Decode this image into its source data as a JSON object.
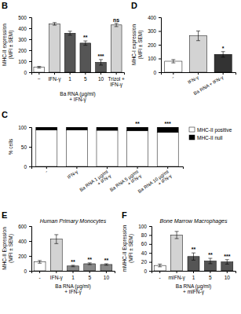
{
  "chart_data": [
    {
      "type": "bar",
      "title": "B",
      "categories": [
        "−",
        "IFN-γ",
        "1",
        "5",
        "10",
        "Trizol +\nIFN-γ"
      ],
      "values": [
        45,
        440,
        355,
        265,
        90,
        430
      ],
      "errors": [
        8,
        12,
        18,
        20,
        25,
        15
      ],
      "colors": [
        "white",
        "lightgray",
        "#555555",
        "#555555",
        "#555555",
        "lightgray"
      ],
      "annotations": [
        null,
        null,
        null,
        "**",
        "***",
        "ns"
      ],
      "ylabel": "MHC-II expression\n(MFI ± SEM)",
      "xlabel": "Ba RNA (µg/ml)\n+ IFN-γ",
      "ylim": [
        0,
        500
      ],
      "yticks": [
        0,
        100,
        200,
        300,
        400,
        500
      ]
    },
    {
      "type": "bar",
      "title": "C",
      "stacked": true,
      "categories": [
        "-",
        "IFN-γ",
        "Ba RNA 1 µg/ml\n+ IFN-γ",
        "Ba RNA 5 µg/ml\n+ IFN-γ",
        "Ba RNA 10 µg/ml\n+ IFN-γ"
      ],
      "series": [
        {
          "name": "MHC-II positive",
          "color": "white",
          "values": [
            93,
            93,
            92,
            91,
            87
          ]
        },
        {
          "name": "MHC-II null",
          "color": "black",
          "values": [
            7,
            7,
            8,
            9,
            13
          ]
        }
      ],
      "annotations": [
        null,
        null,
        null,
        "**",
        "***"
      ],
      "ylabel": "% cells",
      "legend": "upper right",
      "ylim": [
        0,
        100
      ],
      "yticks": [
        0,
        50,
        100
      ]
    },
    {
      "type": "bar",
      "title": "D",
      "categories": [
        "-",
        "IFN-γ",
        "Ba RNA + IFN-γ"
      ],
      "values": [
        80,
        265,
        130
      ],
      "errors": [
        12,
        35,
        20
      ],
      "colors": [
        "white",
        "lightgray",
        "#333333"
      ],
      "annotations": [
        null,
        null,
        "*"
      ],
      "ylabel": "MHC-I expression\n(MFI ± SEM)",
      "ylim": [
        0,
        400
      ],
      "yticks": [
        0,
        100,
        200,
        300,
        400
      ]
    },
    {
      "type": "bar",
      "title": "E",
      "subtitle": "Human Primary Monocytes",
      "categories": [
        "-",
        "IFN-γ",
        "1",
        "5",
        "10"
      ],
      "values": [
        120,
        425,
        65,
        95,
        85
      ],
      "errors": [
        18,
        60,
        10,
        12,
        10
      ],
      "colors": [
        "white",
        "lightgray",
        "#888888",
        "#888888",
        "#888888"
      ],
      "annotations": [
        null,
        null,
        "**",
        "**",
        "**"
      ],
      "ylabel": "MHC-II Expression\n(MFI ± SEM)",
      "xlabel": "Ba RNA (µg/ml)\n+ IFN-γ",
      "ylim": [
        0,
        600
      ],
      "yticks": [
        0,
        200,
        400,
        600
      ]
    },
    {
      "type": "bar",
      "title": "F",
      "subtitle": "Bone Marrow Macrophages",
      "categories": [
        "-",
        "mIFN-γ",
        "1",
        "5",
        "10"
      ],
      "values": [
        12,
        80,
        32,
        22,
        20
      ],
      "errors": [
        3,
        8,
        8,
        6,
        5
      ],
      "colors": [
        "white",
        "lightgray",
        "#555555",
        "#555555",
        "#555555"
      ],
      "annotations": [
        null,
        null,
        "**",
        "**",
        "***"
      ],
      "ylabel": "mMHC-II Expression\n(MFI ± SEM)",
      "xlabel": "Ba RNA (µg/ml)\n+ mIFN-γ",
      "ylim": [
        0,
        100
      ],
      "yticks": [
        0,
        20,
        40,
        60,
        80,
        100
      ]
    }
  ]
}
